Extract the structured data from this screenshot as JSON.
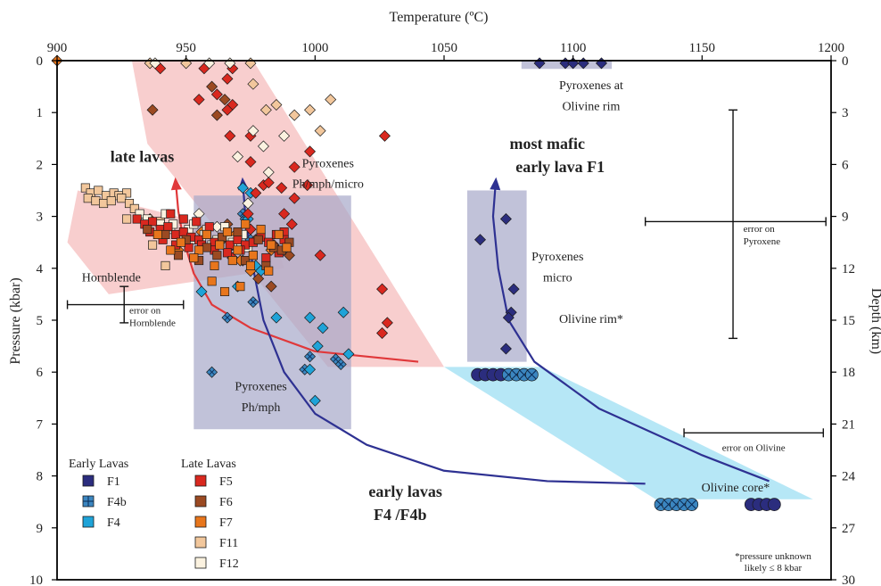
{
  "chart_data": {
    "type": "scatter",
    "title": "",
    "xlabel": "Temperature (ºC)",
    "ylabel_left": "Pressure (kbar)",
    "ylabel_right": "Depth (km)",
    "xlim": [
      900,
      1200
    ],
    "ylim": [
      0,
      10
    ],
    "depth_lim": [
      0,
      30
    ],
    "x_ticks": [
      900,
      950,
      1000,
      1050,
      1100,
      1150,
      1200
    ],
    "y_ticks": [
      0,
      1,
      2,
      3,
      4,
      5,
      6,
      7,
      8,
      9,
      10
    ],
    "depth_ticks": [
      0,
      3,
      6,
      9,
      12,
      15,
      18,
      21,
      24,
      27,
      30
    ],
    "grid": false,
    "colors": {
      "F1": "#2b2d7e",
      "F4b": "#3b86c0",
      "F4": "#1fa3d8",
      "F5": "#d9281f",
      "F6": "#9b4a22",
      "F7": "#e8761c",
      "F11": "#f2c79c",
      "F12": "#fbf2e0",
      "late_arrow": "#e0383a",
      "early_arrow": "#2e3192",
      "pink_field": "#f6bdbd",
      "blue_field": "#a6a8c9",
      "cyan_field": "#a9e3f4"
    },
    "regions": [
      {
        "name": "Pyroxenes Ph/mph/micro",
        "label": "Pyroxenes\nPh/mph/micro",
        "type": "pink",
        "poly": [
          [
            929,
            0
          ],
          [
            976,
            0
          ],
          [
            1050,
            5.9
          ],
          [
            1005,
            5.9
          ],
          [
            935,
            1.6
          ]
        ]
      },
      {
        "name": "Hornblende",
        "label": "Hornblende",
        "type": "pink",
        "poly": [
          [
            908,
            2.5
          ],
          [
            985,
            3.5
          ],
          [
            988,
            4.0
          ],
          [
            920,
            4.5
          ],
          [
            904,
            3.5
          ]
        ]
      },
      {
        "name": "Pyroxenes Ph/mph",
        "label": "Pyroxenes\nPh/mph",
        "type": "blue",
        "poly": [
          [
            953,
            2.6
          ],
          [
            1014,
            2.6
          ],
          [
            1014,
            7.1
          ],
          [
            953,
            7.1
          ]
        ]
      },
      {
        "name": "Pyroxenes micro",
        "label": "Pyroxenes\nmicro",
        "type": "blue",
        "poly": [
          [
            1059,
            2.5
          ],
          [
            1082,
            2.5
          ],
          [
            1082,
            5.8
          ],
          [
            1059,
            5.8
          ]
        ]
      },
      {
        "name": "Pyroxenes at Olivine rim",
        "label": "Pyroxenes at\nOlivine rim",
        "type": "blue",
        "poly": [
          [
            1080,
            0
          ],
          [
            1115,
            0
          ],
          [
            1115,
            0.16
          ],
          [
            1080,
            0.16
          ]
        ]
      },
      {
        "name": "Olivine",
        "label": "",
        "type": "cyan",
        "poly": [
          [
            1050,
            5.9
          ],
          [
            1088,
            5.9
          ],
          [
            1193,
            8.45
          ],
          [
            1132,
            8.45
          ]
        ]
      }
    ],
    "region_labels": [
      {
        "text": "Pyroxenes",
        "x": 1005,
        "y": 2.05
      },
      {
        "text": "Ph/mph/micro",
        "x": 1005,
        "y": 2.45
      },
      {
        "text": "Hornblende",
        "x": 921,
        "y": 4.25
      },
      {
        "text": "Pyroxenes",
        "x": 979,
        "y": 6.35
      },
      {
        "text": "Ph/mph",
        "x": 979,
        "y": 6.75
      },
      {
        "text": "Pyroxenes",
        "x": 1094,
        "y": 3.85
      },
      {
        "text": "micro",
        "x": 1094,
        "y": 4.25
      },
      {
        "text": "Pyroxenes at",
        "x": 1107,
        "y": 0.55
      },
      {
        "text": "Olivine rim",
        "x": 1107,
        "y": 0.95
      },
      {
        "text": "Olivine rim*",
        "x": 1107,
        "y": 5.05
      },
      {
        "text": "Olivine core*",
        "x": 1163,
        "y": 8.3
      }
    ],
    "arrow_labels": [
      {
        "text": "late lavas",
        "x": 933,
        "y": 1.95,
        "color": "late_arrow"
      },
      {
        "text": "most mafic",
        "x": 1090,
        "y": 1.7,
        "color": "early_arrow"
      },
      {
        "text": "early lava F1",
        "x": 1095,
        "y": 2.15,
        "color": "early_arrow"
      },
      {
        "text": "early lavas",
        "x": 1035,
        "y": 8.4,
        "color": "early_arrow"
      },
      {
        "text": "F4 /F4b",
        "x": 1033,
        "y": 8.85,
        "color": "early_arrow"
      }
    ],
    "arrows": [
      {
        "name": "late-lavas-arrow",
        "color": "late_arrow",
        "path": [
          [
            1040,
            5.8
          ],
          [
            1000,
            5.6
          ],
          [
            975,
            5.15
          ],
          [
            960,
            4.7
          ],
          [
            953,
            4.1
          ],
          [
            949,
            3.45
          ],
          [
            947,
            2.9
          ],
          [
            946,
            2.35
          ]
        ]
      },
      {
        "name": "early-lavas-f4-arrow",
        "color": "early_arrow",
        "path": [
          [
            1128,
            8.15
          ],
          [
            1090,
            8.1
          ],
          [
            1050,
            7.9
          ],
          [
            1020,
            7.4
          ],
          [
            1000,
            6.8
          ],
          [
            988,
            6.0
          ],
          [
            980,
            5.0
          ],
          [
            976,
            4.0
          ],
          [
            973,
            3.0
          ],
          [
            972,
            2.35
          ]
        ]
      },
      {
        "name": "early-lava-f1-arrow",
        "color": "early_arrow",
        "path": [
          [
            1176,
            8.1
          ],
          [
            1150,
            7.6
          ],
          [
            1110,
            6.7
          ],
          [
            1085,
            5.8
          ],
          [
            1075,
            5.0
          ],
          [
            1071,
            4.0
          ],
          [
            1069,
            3.0
          ],
          [
            1070,
            2.35
          ]
        ]
      }
    ],
    "error_bars": [
      {
        "name": "error-on-pyroxene",
        "label": [
          "error on",
          "Pyroxene"
        ],
        "x": [
          1128,
          1198
        ],
        "y": [
          0.95,
          5.35
        ],
        "cx": 1162,
        "cy": 3.1,
        "lx": 1166,
        "ly": 3.3
      },
      {
        "name": "error-on-hornblende",
        "label": [
          "error on",
          "Hornblende"
        ],
        "x": [
          904,
          949
        ],
        "y": [
          4.35,
          5.05
        ],
        "cx": 926,
        "cy": 4.7,
        "lx": 928,
        "ly": 4.87
      },
      {
        "name": "error-on-olivine",
        "label": [
          "error on Olivine"
        ],
        "x": [
          1143,
          1197
        ],
        "y": null,
        "cx": 1170,
        "cy": 7.17,
        "lx": 1170,
        "ly": 7.52
      }
    ],
    "series": [
      {
        "name": "F1",
        "marker": "diamond",
        "x": [
          1087,
          1097,
          1100,
          1104,
          1111,
          1074,
          1064,
          1077,
          1076,
          1075,
          1074
        ],
        "y": [
          0.05,
          0.05,
          0.05,
          0.05,
          0.05,
          3.05,
          3.45,
          4.4,
          4.85,
          4.95,
          5.55
        ]
      },
      {
        "name": "F1 olivine",
        "series_ref": "F1",
        "marker": "circle",
        "x": [
          1063,
          1066,
          1069,
          1072,
          1169,
          1172,
          1175,
          1178
        ],
        "y": [
          6.05,
          6.05,
          6.05,
          6.05,
          8.55,
          8.55,
          8.55,
          8.55
        ]
      },
      {
        "name": "F4b",
        "marker": "diamond-cross",
        "x": [
          972,
          973,
          975,
          976,
          966,
          960,
          996,
          998,
          1008,
          1010
        ],
        "y": [
          2.95,
          3.05,
          3.45,
          4.65,
          4.95,
          6.0,
          5.95,
          5.7,
          5.75,
          5.85
        ]
      },
      {
        "name": "F4b olivine",
        "series_ref": "F4b",
        "marker": "circle-cross",
        "x": [
          1075,
          1078,
          1081,
          1084,
          1134,
          1137,
          1140,
          1143,
          1146
        ],
        "y": [
          6.05,
          6.05,
          6.05,
          6.05,
          8.55,
          8.55,
          8.55,
          8.55,
          8.55
        ]
      },
      {
        "name": "F4",
        "marker": "diamond",
        "x": [
          972,
          975,
          974,
          968,
          977,
          956,
          970,
          998,
          1003,
          1001,
          1013,
          1011,
          998,
          1000,
          985,
          979
        ],
        "y": [
          2.45,
          2.55,
          3.05,
          3.55,
          3.95,
          4.45,
          4.35,
          4.95,
          5.15,
          5.5,
          5.65,
          4.85,
          5.95,
          6.55,
          4.95,
          4.05
        ]
      },
      {
        "name": "F5",
        "marker": "diamond",
        "x": [
          940,
          957,
          966,
          968,
          962,
          955,
          968,
          966,
          967,
          975,
          975,
          980,
          977,
          982,
          974,
          987,
          992,
          988,
          991,
          998,
          992,
          997,
          1026,
          1028,
          1026,
          1027,
          1002,
          984,
          975,
          968,
          963
        ],
        "y": [
          0.15,
          0.15,
          0.35,
          0.15,
          0.65,
          0.75,
          0.85,
          0.95,
          1.45,
          1.45,
          1.95,
          2.4,
          2.55,
          2.35,
          2.95,
          2.45,
          2.65,
          2.95,
          3.15,
          1.75,
          2.05,
          2.4,
          4.4,
          5.05,
          5.25,
          1.45,
          3.75,
          3.55,
          3.25,
          3.8,
          3.5
        ]
      },
      {
        "name": "F6",
        "marker": "diamond",
        "x": [
          937,
          960,
          965,
          962,
          966,
          972,
          977,
          983,
          978,
          990
        ],
        "y": [
          0.95,
          0.5,
          0.75,
          1.05,
          3.15,
          3.85,
          3.45,
          4.35,
          4.2,
          3.75
        ]
      },
      {
        "name": "F7",
        "marker": "diamond",
        "x": [
          936,
          947,
          956,
          964,
          971,
          983,
          975,
          969
        ],
        "y": [
          3.05,
          3.65,
          3.3,
          3.45,
          3.85,
          3.65,
          4.05,
          3.35
        ]
      },
      {
        "name": "F11",
        "marker": "diamond",
        "x": [
          936,
          950,
          975,
          976,
          985,
          992,
          998,
          1002,
          1006,
          981
        ],
        "y": [
          0.05,
          0.05,
          0.05,
          0.45,
          0.85,
          1.05,
          0.95,
          1.35,
          0.75,
          0.95
        ]
      },
      {
        "name": "F12",
        "marker": "diamond",
        "x": [
          938,
          959,
          967,
          976,
          980,
          982,
          970,
          974,
          962,
          955,
          988
        ],
        "y": [
          0.05,
          0.05,
          0.05,
          1.35,
          1.65,
          2.15,
          1.85,
          2.75,
          3.2,
          2.95,
          1.45
        ]
      },
      {
        "name": "F11 squares",
        "series_ref": "F11",
        "marker": "square",
        "x": [
          911,
          913,
          916,
          919,
          922,
          924,
          927,
          912,
          915,
          918,
          921,
          925,
          928,
          930,
          927,
          940,
          937,
          942
        ],
        "y": [
          2.45,
          2.55,
          2.5,
          2.6,
          2.55,
          2.6,
          2.55,
          2.65,
          2.7,
          2.75,
          2.7,
          2.65,
          2.75,
          2.85,
          3.05,
          3.1,
          3.55,
          3.95
        ]
      },
      {
        "name": "F12 squares",
        "series_ref": "F12",
        "marker": "square",
        "x": [
          932,
          935,
          940,
          944,
          948,
          952,
          956,
          960,
          963,
          967,
          970,
          974,
          945,
          951,
          957,
          962,
          968,
          972,
          953,
          958,
          965,
          942
        ],
        "y": [
          2.95,
          3.05,
          3.15,
          3.25,
          3.35,
          3.45,
          3.45,
          3.55,
          3.5,
          3.45,
          3.55,
          3.6,
          3.15,
          3.25,
          3.35,
          3.45,
          3.5,
          3.35,
          3.15,
          3.25,
          3.2,
          2.95
        ]
      },
      {
        "name": "F5 squares",
        "series_ref": "F5",
        "marker": "square",
        "x": [
          931,
          934,
          937,
          940,
          943,
          946,
          949,
          952,
          955,
          958,
          961,
          964,
          967,
          970,
          973,
          976,
          979,
          982,
          985,
          988,
          936,
          941,
          946,
          951,
          956,
          961,
          966,
          971,
          976,
          981,
          986,
          944,
          949,
          954,
          959,
          988
        ],
        "y": [
          3.05,
          3.15,
          3.1,
          3.25,
          3.2,
          3.35,
          3.3,
          3.4,
          3.45,
          3.35,
          3.5,
          3.4,
          3.55,
          3.45,
          3.55,
          3.5,
          3.4,
          3.5,
          3.35,
          3.3,
          3.3,
          3.45,
          3.55,
          3.6,
          3.55,
          3.65,
          3.7,
          3.65,
          3.75,
          3.8,
          3.7,
          2.95,
          3.05,
          3.1,
          3.2,
          3.45
        ]
      },
      {
        "name": "F6 squares",
        "series_ref": "F6",
        "marker": "square",
        "x": [
          935,
          942,
          950,
          958,
          964,
          970,
          978,
          984,
          990,
          947,
          955,
          962,
          973,
          981,
          987
        ],
        "y": [
          3.25,
          3.35,
          3.45,
          3.6,
          3.4,
          3.3,
          3.45,
          3.6,
          3.5,
          3.75,
          3.85,
          3.75,
          3.85,
          3.95,
          3.65
        ]
      },
      {
        "name": "F7 squares",
        "series_ref": "F7",
        "marker": "square",
        "x": [
          939,
          948,
          955,
          963,
          970,
          976,
          983,
          989,
          944,
          953,
          961,
          968,
          975,
          982,
          958,
          966,
          973,
          979,
          986,
          960,
          965,
          971
        ],
        "y": [
          3.35,
          3.5,
          3.65,
          3.55,
          3.65,
          3.75,
          3.55,
          3.6,
          3.65,
          3.8,
          3.95,
          3.85,
          3.95,
          4.05,
          3.35,
          3.3,
          3.15,
          3.25,
          3.35,
          4.25,
          4.45,
          4.35
        ]
      }
    ],
    "legend": {
      "placement": "bottom-left",
      "early_title": "Early Lavas",
      "late_title": "Late Lavas",
      "early": [
        "F1",
        "F4b",
        "F4"
      ],
      "late": [
        "F5",
        "F6",
        "F7",
        "F11",
        "F12"
      ]
    },
    "footnote": [
      "*pressure unknown",
      "likely ≤ 8 kbar"
    ],
    "left_marker": {
      "x": 900,
      "y": 0,
      "series_ref": "F7"
    }
  }
}
